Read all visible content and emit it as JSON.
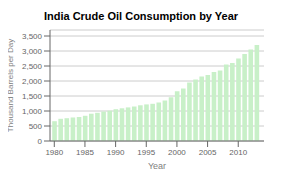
{
  "chart_data": {
    "type": "bar",
    "title": "India Crude Oil Consumption by Year",
    "xlabel": "Year",
    "ylabel": "Thousand Barrels per Day",
    "x": [
      1980,
      1981,
      1982,
      1983,
      1984,
      1985,
      1986,
      1987,
      1988,
      1989,
      1990,
      1991,
      1992,
      1993,
      1994,
      1995,
      1996,
      1997,
      1998,
      1999,
      2000,
      2001,
      2002,
      2003,
      2004,
      2005,
      2006,
      2007,
      2008,
      2009,
      2010,
      2011,
      2012,
      2013
    ],
    "values": [
      660,
      740,
      760,
      780,
      800,
      840,
      910,
      940,
      980,
      1010,
      1060,
      1090,
      1120,
      1150,
      1190,
      1220,
      1240,
      1280,
      1350,
      1460,
      1660,
      1750,
      1950,
      2050,
      2150,
      2200,
      2300,
      2350,
      2550,
      2600,
      2750,
      2900,
      3050,
      3200
    ],
    "color": "#c8f0c8",
    "xlim": [
      1979.3,
      2014.2
    ],
    "xticks": [
      1980,
      1985,
      1990,
      1995,
      2000,
      2005,
      2010
    ],
    "ylim": [
      0,
      3700
    ],
    "yticks": [
      0,
      500,
      {
        "value": 1000,
        "label": "1,000"
      },
      {
        "value": 1500,
        "label": "1,500"
      },
      {
        "value": 2000,
        "label": "2,000"
      },
      {
        "value": 2500,
        "label": "2,500"
      },
      {
        "value": 3000,
        "label": "3,000"
      },
      {
        "value": 3500,
        "label": "3,500"
      }
    ],
    "grid": true
  }
}
